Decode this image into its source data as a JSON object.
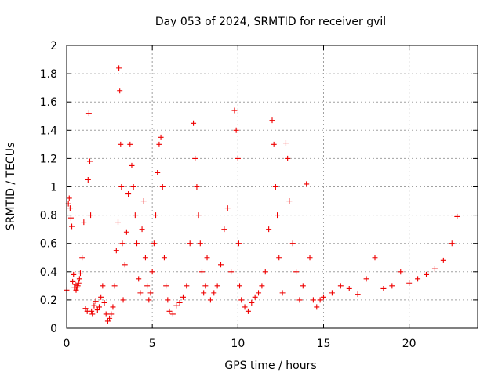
{
  "chart_data": {
    "type": "scatter",
    "title": "Day 053 of 2024, SRMTID for receiver gvil",
    "xlabel": "GPS time / hours",
    "ylabel": "SRMTID / TECUs",
    "xlim": [
      0,
      24
    ],
    "ylim": [
      0,
      2
    ],
    "xticks": [
      0,
      5,
      10,
      15,
      20
    ],
    "yticks": [
      0,
      0.2,
      0.4,
      0.6,
      0.8,
      1,
      1.2,
      1.4,
      1.6,
      1.8,
      2
    ],
    "xtick_labels": [
      "0",
      "5",
      "10",
      "15",
      "20"
    ],
    "ytick_labels": [
      "0",
      "0.2",
      "0.4",
      "0.6",
      "0.8",
      "1",
      "1.2",
      "1.4",
      "1.6",
      "1.8",
      "2"
    ],
    "grid": true,
    "marker": "plus",
    "color": "#ee0000",
    "series": [
      {
        "name": "SRMTID",
        "x": [
          0.0,
          0.1,
          0.15,
          0.2,
          0.25,
          0.3,
          0.35,
          0.4,
          0.45,
          0.5,
          0.55,
          0.6,
          0.65,
          0.7,
          0.75,
          0.8,
          0.9,
          1.0,
          1.1,
          1.2,
          1.25,
          1.3,
          1.35,
          1.4,
          1.45,
          1.5,
          1.6,
          1.7,
          1.8,
          1.9,
          2.0,
          2.1,
          2.2,
          2.3,
          2.4,
          2.5,
          2.6,
          2.7,
          2.8,
          2.9,
          3.0,
          3.05,
          3.1,
          3.15,
          3.2,
          3.25,
          3.3,
          3.4,
          3.5,
          3.6,
          3.7,
          3.8,
          3.9,
          4.0,
          4.1,
          4.2,
          4.3,
          4.4,
          4.5,
          4.6,
          4.7,
          4.8,
          4.9,
          5.0,
          5.1,
          5.2,
          5.3,
          5.4,
          5.5,
          5.6,
          5.7,
          5.8,
          5.9,
          6.0,
          6.2,
          6.4,
          6.6,
          6.8,
          7.0,
          7.2,
          7.4,
          7.5,
          7.6,
          7.7,
          7.8,
          7.9,
          8.0,
          8.1,
          8.2,
          8.4,
          8.6,
          8.8,
          9.0,
          9.2,
          9.4,
          9.6,
          9.8,
          9.9,
          10.0,
          10.05,
          10.1,
          10.2,
          10.4,
          10.6,
          10.8,
          11.0,
          11.2,
          11.4,
          11.6,
          11.8,
          12.0,
          12.1,
          12.2,
          12.3,
          12.4,
          12.6,
          12.8,
          12.9,
          13.0,
          13.2,
          13.4,
          13.6,
          13.8,
          14.0,
          14.2,
          14.4,
          14.6,
          14.8,
          15.0,
          15.5,
          16.0,
          16.5,
          17.0,
          17.5,
          18.0,
          18.5,
          19.0,
          19.5,
          20.0,
          20.5,
          21.0,
          21.5,
          22.0,
          22.5,
          22.8
        ],
        "y": [
          0.27,
          0.88,
          0.92,
          0.85,
          0.78,
          0.72,
          0.33,
          0.38,
          0.29,
          0.31,
          0.27,
          0.29,
          0.3,
          0.32,
          0.35,
          0.39,
          0.5,
          0.75,
          0.14,
          0.12,
          1.05,
          1.52,
          1.18,
          0.8,
          0.12,
          0.1,
          0.16,
          0.19,
          0.13,
          0.15,
          0.22,
          0.3,
          0.18,
          0.1,
          0.05,
          0.07,
          0.1,
          0.15,
          0.3,
          0.55,
          0.75,
          1.84,
          1.68,
          1.3,
          1.0,
          0.6,
          0.2,
          0.45,
          0.68,
          0.95,
          1.3,
          1.15,
          1.0,
          0.8,
          0.6,
          0.35,
          0.25,
          0.7,
          0.9,
          0.5,
          0.3,
          0.2,
          0.25,
          0.4,
          0.6,
          0.8,
          1.1,
          1.3,
          1.35,
          1.0,
          0.5,
          0.3,
          0.2,
          0.12,
          0.1,
          0.16,
          0.18,
          0.22,
          0.3,
          0.6,
          1.45,
          1.2,
          1.0,
          0.8,
          0.6,
          0.4,
          0.25,
          0.3,
          0.5,
          0.2,
          0.25,
          0.3,
          0.45,
          0.7,
          0.85,
          0.4,
          1.54,
          1.4,
          1.2,
          0.6,
          0.3,
          0.2,
          0.15,
          0.12,
          0.18,
          0.22,
          0.25,
          0.3,
          0.4,
          0.7,
          1.47,
          1.3,
          1.0,
          0.8,
          0.5,
          0.25,
          1.31,
          1.2,
          0.9,
          0.6,
          0.4,
          0.2,
          0.3,
          1.02,
          0.5,
          0.2,
          0.15,
          0.2,
          0.22,
          0.25,
          0.3,
          0.28,
          0.24,
          0.35,
          0.5,
          0.28,
          0.3,
          0.4,
          0.32,
          0.35,
          0.38,
          0.42,
          0.48,
          0.6,
          0.79
        ]
      }
    ]
  }
}
